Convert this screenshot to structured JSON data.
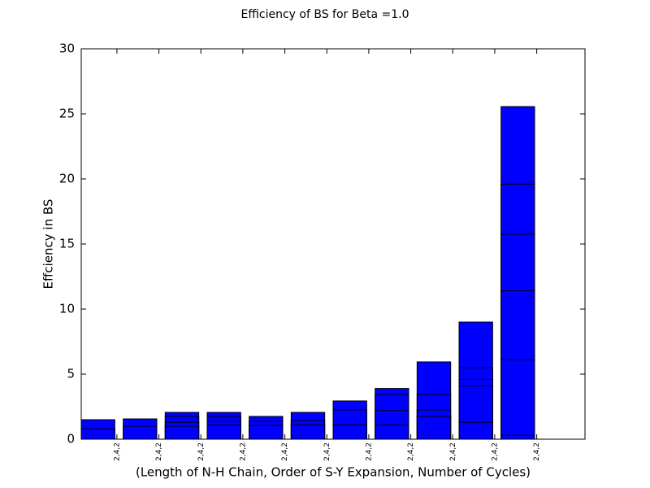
{
  "chart_data": {
    "type": "bar",
    "overlay": true,
    "title": "Efficiency of BS for Beta =1.0",
    "xlabel": "(Length of N-H Chain, Order of S-Y Expansion, Number of Cycles)",
    "ylabel": "Effciency in BS",
    "categories": [
      "2,4,2",
      "2,4,2",
      "2,4,2",
      "2,4,2",
      "2,4,2",
      "2,4,2",
      "2,4,2",
      "2,4,2",
      "2,4,2",
      "2,4,2",
      "2,4,2"
    ],
    "series": [
      {
        "color": "#0000ff",
        "values": [
          1.5,
          1.56,
          2.06,
          2.06,
          1.75,
          2.06,
          2.94,
          3.9,
          5.94,
          9.0,
          25.56
        ]
      },
      {
        "color": "#0000ff",
        "values": [
          0.8,
          1.0,
          1.75,
          1.75,
          1.37,
          1.44,
          2.25,
          3.44,
          3.44,
          5.5,
          19.6
        ]
      },
      {
        "color": "#0000ff",
        "values": [
          null,
          null,
          1.3,
          1.37,
          1.06,
          1.1,
          1.1,
          2.2,
          2.25,
          4.6,
          15.75
        ]
      },
      {
        "color": "#0000ff",
        "values": [
          null,
          null,
          1.0,
          1.1,
          null,
          null,
          null,
          1.1,
          1.75,
          4.1,
          11.4
        ]
      },
      {
        "color": "#0000ff",
        "values": [
          null,
          null,
          null,
          null,
          null,
          null,
          null,
          null,
          null,
          1.3,
          6.1
        ]
      },
      {
        "color": "#0000ff",
        "values": [
          null,
          null,
          null,
          null,
          null,
          null,
          null,
          null,
          null,
          null,
          0.3
        ]
      }
    ],
    "ylim": [
      0,
      30
    ],
    "yticks": [
      0,
      5,
      10,
      15,
      20,
      25,
      30
    ],
    "grid": false
  }
}
